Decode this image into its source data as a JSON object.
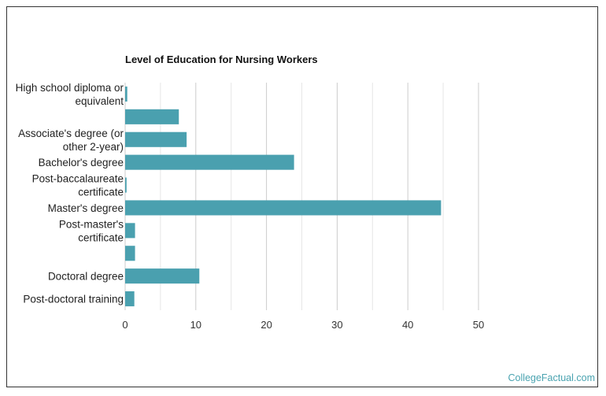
{
  "chart_data": {
    "type": "bar",
    "orientation": "horizontal",
    "title": "Level of Education for Nursing Workers",
    "xlabel": "",
    "ylabel": "",
    "xlim": [
      0,
      50
    ],
    "ticks": [
      0,
      10,
      20,
      30,
      40,
      50
    ],
    "grid": true,
    "categories": [
      [
        "High school diploma or",
        "equivalent"
      ],
      [],
      [
        "Associate's degree (or",
        "other 2-year)"
      ],
      [
        "Bachelor's degree"
      ],
      [
        "Post-baccalaureate",
        "certificate"
      ],
      [
        "Master's degree"
      ],
      [
        "Post-master's",
        "certificate"
      ],
      [],
      [
        "Doctoral degree"
      ],
      [
        "Post-doctoral training"
      ]
    ],
    "values": [
      0.3,
      7.6,
      8.7,
      23.9,
      0.2,
      44.7,
      1.4,
      1.4,
      10.5,
      1.3
    ],
    "bar_color": "#4aa0af",
    "grid_color": "#cccccc"
  },
  "credit": "CollegeFactual.com"
}
